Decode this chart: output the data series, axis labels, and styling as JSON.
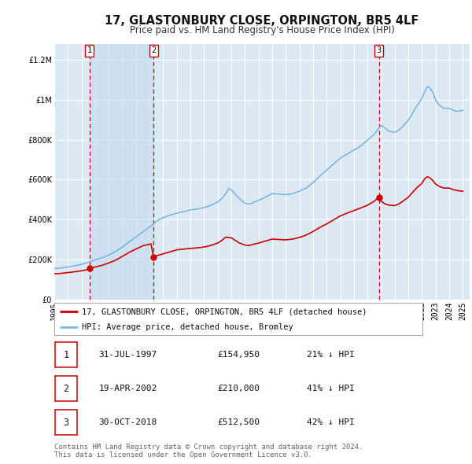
{
  "title": "17, GLASTONBURY CLOSE, ORPINGTON, BR5 4LF",
  "subtitle": "Price paid vs. HM Land Registry's House Price Index (HPI)",
  "title_fontsize": 10.5,
  "subtitle_fontsize": 8.5,
  "background_color": "#ffffff",
  "plot_bg_color": "#dce9f5",
  "grid_color": "#ffffff",
  "xlim": [
    1995.0,
    2025.5
  ],
  "ylim": [
    0,
    1280000
  ],
  "yticks": [
    0,
    200000,
    400000,
    600000,
    800000,
    1000000,
    1200000
  ],
  "ytick_labels": [
    "£0",
    "£200K",
    "£400K",
    "£600K",
    "£800K",
    "£1M",
    "£1.2M"
  ],
  "xticks": [
    1995,
    1996,
    1997,
    1998,
    1999,
    2000,
    2001,
    2002,
    2003,
    2004,
    2005,
    2006,
    2007,
    2008,
    2009,
    2010,
    2011,
    2012,
    2013,
    2014,
    2015,
    2016,
    2017,
    2018,
    2019,
    2020,
    2021,
    2022,
    2023,
    2024,
    2025
  ],
  "sale_color": "#cc0000",
  "hpi_color": "#7ab8e0",
  "marker_color": "#cc0000",
  "vline_color": "#cc0000",
  "sale_label": "17, GLASTONBURY CLOSE, ORPINGTON, BR5 4LF (detached house)",
  "hpi_label": "HPI: Average price, detached house, Bromley",
  "transactions": [
    {
      "num": 1,
      "date_x": 1997.58,
      "price": 154950,
      "label": "31-JUL-1997",
      "price_label": "£154,950",
      "pct": "21% ↓ HPI"
    },
    {
      "num": 2,
      "date_x": 2002.3,
      "price": 210000,
      "label": "19-APR-2002",
      "price_label": "£210,000",
      "pct": "41% ↓ HPI"
    },
    {
      "num": 3,
      "date_x": 2018.83,
      "price": 512500,
      "label": "30-OCT-2018",
      "price_label": "£512,500",
      "pct": "42% ↓ HPI"
    }
  ],
  "legend_fontsize": 7.5,
  "tick_fontsize": 7,
  "table_fontsize": 8,
  "footer_text": "Contains HM Land Registry data © Crown copyright and database right 2024.\nThis data is licensed under the Open Government Licence v3.0.",
  "footer_fontsize": 6.5,
  "hpi_anchors": [
    [
      1995.0,
      155000
    ],
    [
      1995.5,
      157000
    ],
    [
      1996.0,
      162000
    ],
    [
      1996.5,
      168000
    ],
    [
      1997.0,
      175000
    ],
    [
      1997.5,
      185000
    ],
    [
      1998.0,
      198000
    ],
    [
      1998.5,
      208000
    ],
    [
      1999.0,
      222000
    ],
    [
      1999.5,
      240000
    ],
    [
      2000.0,
      262000
    ],
    [
      2000.5,
      288000
    ],
    [
      2001.0,
      312000
    ],
    [
      2001.5,
      338000
    ],
    [
      2002.0,
      362000
    ],
    [
      2002.3,
      378000
    ],
    [
      2002.5,
      392000
    ],
    [
      2003.0,
      410000
    ],
    [
      2003.5,
      422000
    ],
    [
      2004.0,
      432000
    ],
    [
      2004.5,
      440000
    ],
    [
      2005.0,
      448000
    ],
    [
      2005.5,
      453000
    ],
    [
      2006.0,
      460000
    ],
    [
      2006.5,
      472000
    ],
    [
      2007.0,
      488000
    ],
    [
      2007.3,
      505000
    ],
    [
      2007.6,
      530000
    ],
    [
      2007.8,
      555000
    ],
    [
      2008.0,
      548000
    ],
    [
      2008.3,
      525000
    ],
    [
      2008.6,
      505000
    ],
    [
      2009.0,
      482000
    ],
    [
      2009.3,
      478000
    ],
    [
      2009.6,
      485000
    ],
    [
      2010.0,
      496000
    ],
    [
      2010.5,
      512000
    ],
    [
      2011.0,
      530000
    ],
    [
      2011.5,
      528000
    ],
    [
      2012.0,
      525000
    ],
    [
      2012.5,
      530000
    ],
    [
      2013.0,
      542000
    ],
    [
      2013.5,
      558000
    ],
    [
      2014.0,
      585000
    ],
    [
      2014.5,
      618000
    ],
    [
      2015.0,
      648000
    ],
    [
      2015.5,
      678000
    ],
    [
      2016.0,
      708000
    ],
    [
      2016.5,
      728000
    ],
    [
      2017.0,
      748000
    ],
    [
      2017.5,
      768000
    ],
    [
      2018.0,
      798000
    ],
    [
      2018.5,
      828000
    ],
    [
      2018.83,
      858000
    ],
    [
      2019.0,
      872000
    ],
    [
      2019.3,
      858000
    ],
    [
      2019.6,
      842000
    ],
    [
      2020.0,
      838000
    ],
    [
      2020.3,
      848000
    ],
    [
      2020.6,
      868000
    ],
    [
      2021.0,
      898000
    ],
    [
      2021.3,
      932000
    ],
    [
      2021.6,
      968000
    ],
    [
      2022.0,
      1008000
    ],
    [
      2022.2,
      1042000
    ],
    [
      2022.4,
      1068000
    ],
    [
      2022.6,
      1058000
    ],
    [
      2022.8,
      1038000
    ],
    [
      2023.0,
      998000
    ],
    [
      2023.3,
      972000
    ],
    [
      2023.6,
      958000
    ],
    [
      2024.0,
      958000
    ],
    [
      2024.3,
      948000
    ],
    [
      2024.6,
      942000
    ],
    [
      2025.0,
      948000
    ]
  ],
  "sale_anchors": [
    [
      1995.0,
      128000
    ],
    [
      1995.5,
      130000
    ],
    [
      1996.0,
      134000
    ],
    [
      1996.5,
      138000
    ],
    [
      1997.0,
      143000
    ],
    [
      1997.4,
      148000
    ],
    [
      1997.58,
      154950
    ],
    [
      1998.0,
      162000
    ],
    [
      1998.5,
      170000
    ],
    [
      1999.0,
      182000
    ],
    [
      1999.5,
      196000
    ],
    [
      2000.0,
      215000
    ],
    [
      2000.5,
      235000
    ],
    [
      2001.0,
      252000
    ],
    [
      2001.5,
      268000
    ],
    [
      2002.1,
      278000
    ],
    [
      2002.3,
      210000
    ],
    [
      2002.5,
      218000
    ],
    [
      2003.0,
      228000
    ],
    [
      2003.5,
      238000
    ],
    [
      2004.0,
      248000
    ],
    [
      2004.5,
      252000
    ],
    [
      2005.0,
      255000
    ],
    [
      2005.5,
      258000
    ],
    [
      2006.0,
      262000
    ],
    [
      2006.5,
      270000
    ],
    [
      2007.0,
      282000
    ],
    [
      2007.3,
      295000
    ],
    [
      2007.6,
      312000
    ],
    [
      2008.0,
      308000
    ],
    [
      2008.3,
      295000
    ],
    [
      2008.6,
      282000
    ],
    [
      2009.0,
      272000
    ],
    [
      2009.3,
      270000
    ],
    [
      2009.6,
      275000
    ],
    [
      2010.0,
      282000
    ],
    [
      2010.5,
      292000
    ],
    [
      2011.0,
      302000
    ],
    [
      2011.5,
      300000
    ],
    [
      2012.0,
      298000
    ],
    [
      2012.5,
      302000
    ],
    [
      2013.0,
      310000
    ],
    [
      2013.5,
      322000
    ],
    [
      2014.0,
      340000
    ],
    [
      2014.5,
      360000
    ],
    [
      2015.0,
      378000
    ],
    [
      2015.5,
      398000
    ],
    [
      2016.0,
      418000
    ],
    [
      2016.5,
      432000
    ],
    [
      2017.0,
      445000
    ],
    [
      2017.5,
      458000
    ],
    [
      2018.0,
      472000
    ],
    [
      2018.5,
      492000
    ],
    [
      2018.83,
      512500
    ],
    [
      2019.0,
      492000
    ],
    [
      2019.3,
      478000
    ],
    [
      2019.6,
      472000
    ],
    [
      2020.0,
      470000
    ],
    [
      2020.3,
      478000
    ],
    [
      2020.6,
      492000
    ],
    [
      2021.0,
      512000
    ],
    [
      2021.3,
      535000
    ],
    [
      2021.6,
      558000
    ],
    [
      2022.0,
      582000
    ],
    [
      2022.2,
      605000
    ],
    [
      2022.4,
      615000
    ],
    [
      2022.6,
      608000
    ],
    [
      2022.8,
      595000
    ],
    [
      2023.0,
      578000
    ],
    [
      2023.3,
      565000
    ],
    [
      2023.6,
      558000
    ],
    [
      2024.0,
      558000
    ],
    [
      2024.3,
      550000
    ],
    [
      2024.6,
      545000
    ],
    [
      2025.0,
      542000
    ]
  ]
}
